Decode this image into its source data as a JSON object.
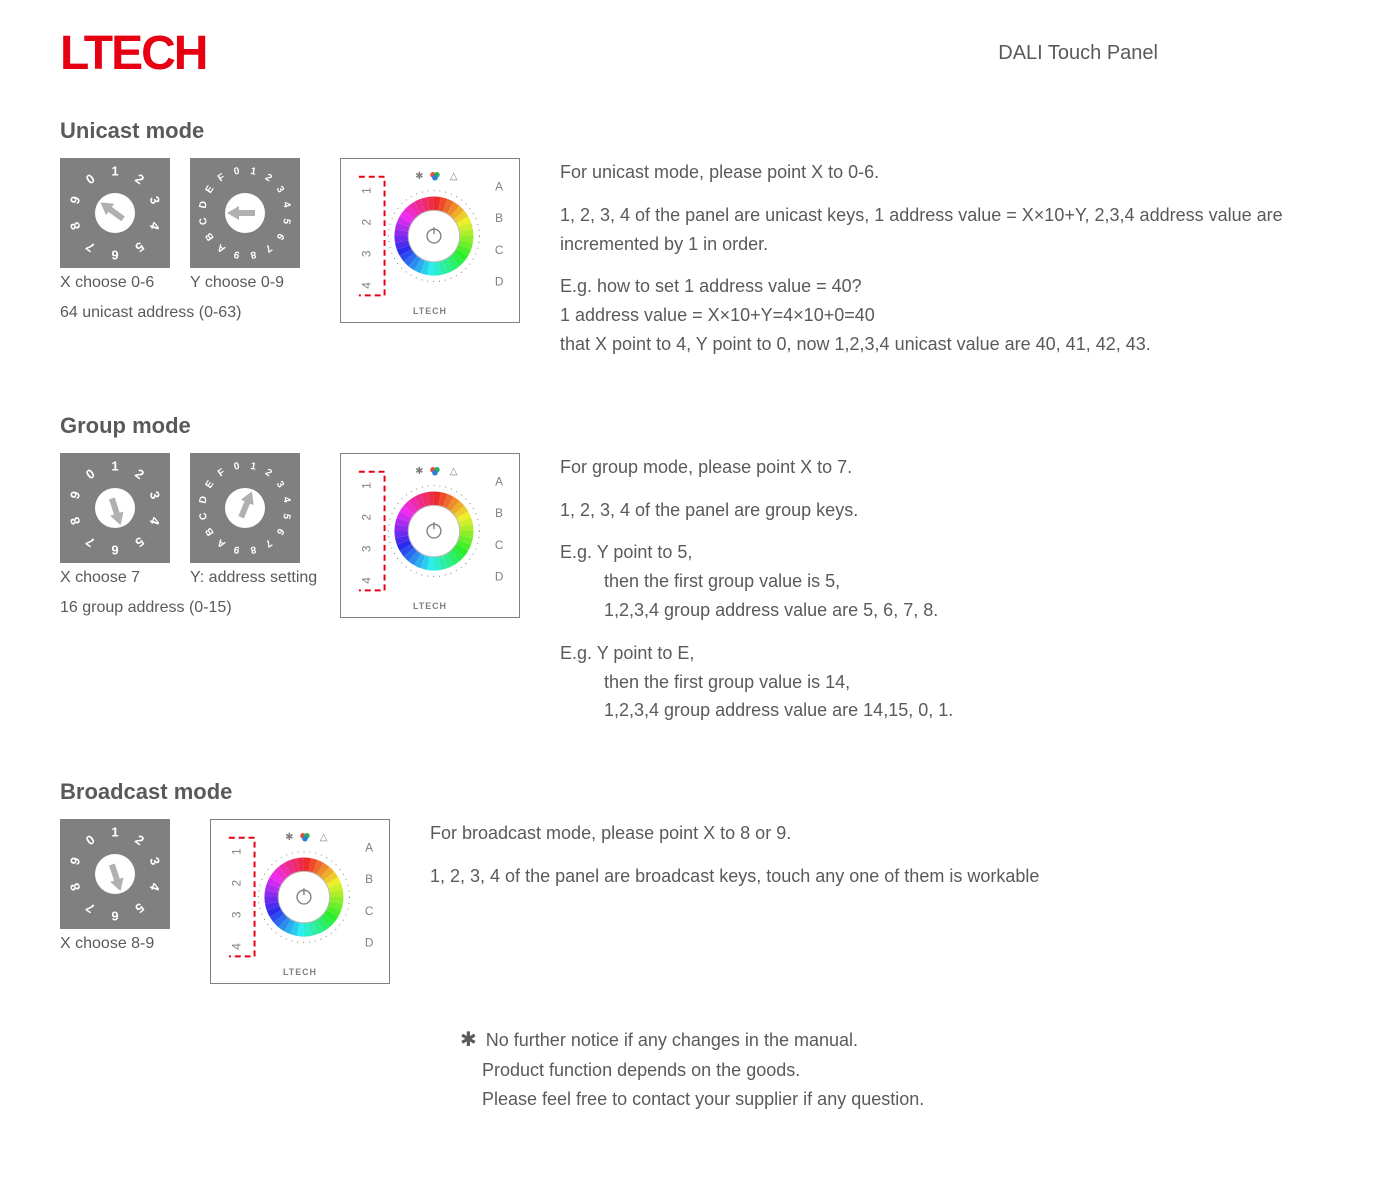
{
  "brand": "LTECH",
  "product_title": "DALI Touch Panel",
  "colors": {
    "brand_red": "#e60012",
    "dial_bg": "#808080",
    "dial_fg": "#ffffff",
    "text": "#5a5a5a",
    "panel_border": "#808080",
    "dash_red": "#e60012"
  },
  "dial10": {
    "labels": [
      "0",
      "1",
      "2",
      "3",
      "4",
      "5",
      "6",
      "7",
      "8",
      "9"
    ]
  },
  "dial16": {
    "labels": [
      "0",
      "1",
      "2",
      "3",
      "4",
      "5",
      "6",
      "7",
      "8",
      "9",
      "A",
      "B",
      "C",
      "D",
      "E",
      "F"
    ]
  },
  "panel": {
    "left_nums": [
      "1",
      "2",
      "3",
      "4"
    ],
    "right_letters": [
      "A",
      "B",
      "C",
      "D"
    ],
    "brand_small": "LTECH"
  },
  "sections": {
    "unicast": {
      "title": "Unicast mode",
      "x_caption": "X choose 0-6",
      "y_caption": "Y choose 0-9",
      "subtitle": "64 unicast address (0-63)",
      "desc1": "For unicast mode, please point X to 0-6.",
      "desc2": "1, 2, 3, 4  of the panel are unicast keys, 1 address value = X×10+Y, 2,3,4 address value are incremented by 1 in order.",
      "desc3": "E.g.  how to set 1 address value = 40?",
      "desc4": "1 address value = X×10+Y=4×10+0=40",
      "desc5": "that X point to 4, Y point to 0, now 1,2,3,4 unicast value are 40, 41, 42, 43.",
      "dialX_arrow_deg": -54,
      "dialY_arrow_deg": -90
    },
    "group": {
      "title": "Group mode",
      "x_caption": "X choose 7",
      "y_caption": "Y: address setting",
      "subtitle": "16 group address (0-15)",
      "desc1": "For group mode, please point X to 7.",
      "desc2": "1, 2, 3, 4  of the panel are group keys.",
      "desc3": "E.g.  Y point to 5,",
      "desc3b": "then the first group value is 5,",
      "desc3c": "1,2,3,4 group address value are 5, 6, 7, 8.",
      "desc4": "E.g.  Y point to E,",
      "desc4b": "then the first group value is 14,",
      "desc4c": "1,2,3,4 group address value are 14,15, 0, 1.",
      "dialX_arrow_deg": 162,
      "dialY_arrow_deg": 22.5
    },
    "broadcast": {
      "title": "Broadcast mode",
      "x_caption": "X choose 8-9",
      "desc1": "For broadcast mode, please point X to 8 or 9.",
      "desc2": "1, 2, 3, 4 of the panel are broadcast keys, touch any one of them is workable",
      "dialX_arrow_deg": 162
    }
  },
  "footnote": {
    "star": "✱",
    "l1": "No further notice if any changes in the manual.",
    "l2": "Product function depends on the goods.",
    "l3": "Please feel free to contact your supplier if any question."
  }
}
